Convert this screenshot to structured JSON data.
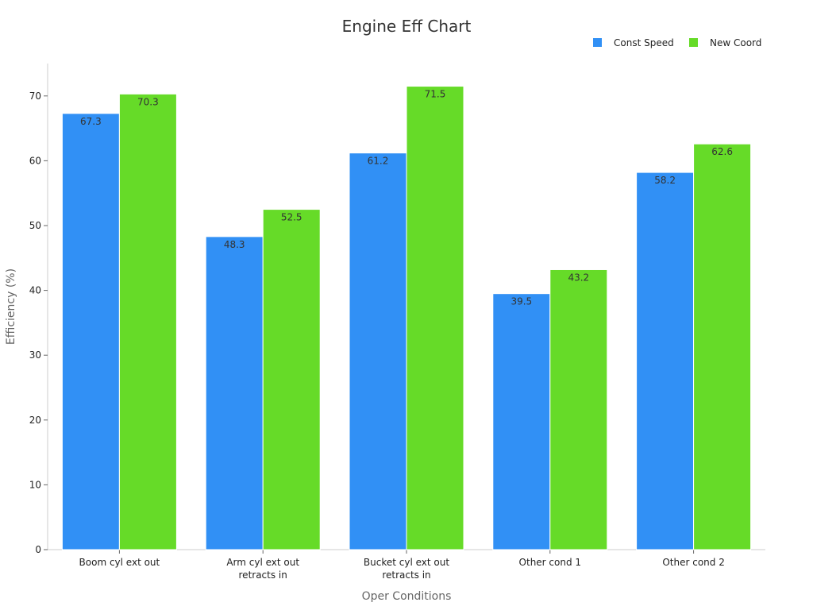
{
  "chart_data": {
    "type": "bar",
    "title": "Engine Eff Chart",
    "xlabel": "Oper Conditions",
    "ylabel": "Efficiency (%)",
    "ylim": [
      0,
      75
    ],
    "yticks": [
      0,
      10,
      20,
      30,
      40,
      50,
      60,
      70
    ],
    "categories": [
      [
        "Boom cyl ext out"
      ],
      [
        "Arm cyl ext out",
        "retracts in"
      ],
      [
        "Bucket cyl ext out",
        "retracts in"
      ],
      [
        "Other cond 1"
      ],
      [
        "Other cond 2"
      ]
    ],
    "series": [
      {
        "name": "Const Speed",
        "color": "#3190f5",
        "values": [
          67.3,
          48.3,
          61.2,
          39.5,
          58.2
        ]
      },
      {
        "name": "New Coord",
        "color": "#66db28",
        "values": [
          70.3,
          52.5,
          71.5,
          43.2,
          62.6
        ]
      }
    ],
    "grid": false,
    "legend_position": "top-right",
    "data_labels": true
  }
}
